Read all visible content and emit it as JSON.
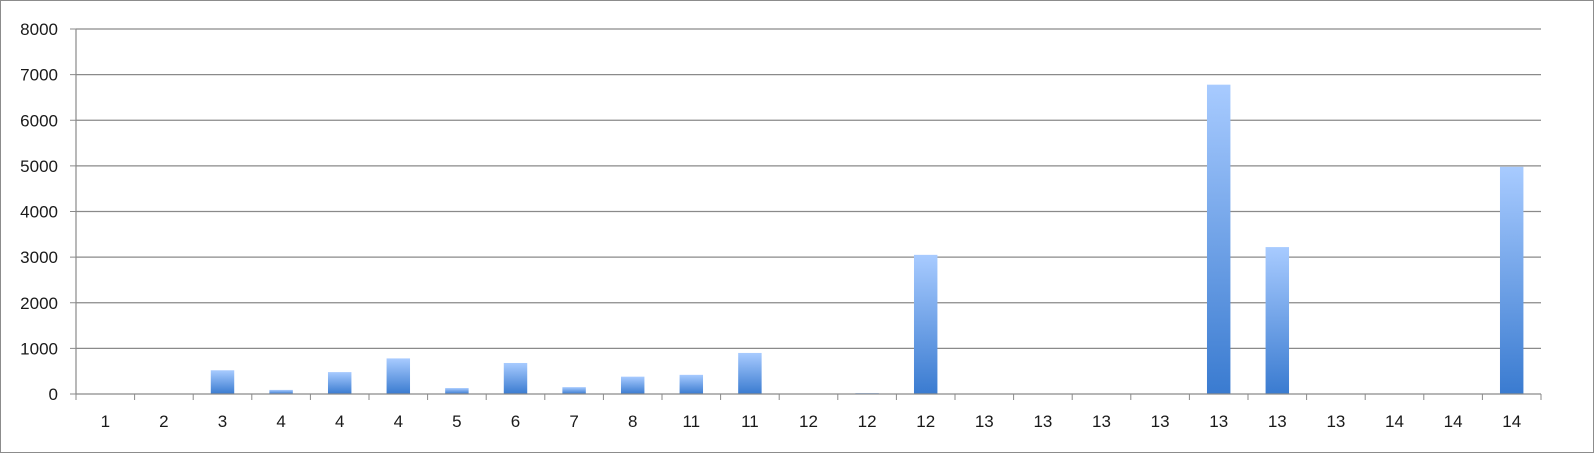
{
  "chart_data": {
    "type": "bar",
    "title": "",
    "xlabel": "",
    "ylabel": "",
    "ylim": [
      0,
      8000
    ],
    "yticks": [
      0,
      1000,
      2000,
      3000,
      4000,
      5000,
      6000,
      7000,
      8000
    ],
    "grid": "horizontal",
    "legend": "none",
    "bar_color_top": "#a8cbff",
    "bar_color_bottom": "#3a7bd0",
    "categories": [
      "1",
      "2",
      "3",
      "4",
      "4",
      "4",
      "5",
      "6",
      "7",
      "8",
      "11",
      "11",
      "12",
      "12",
      "12",
      "13",
      "13",
      "13",
      "13",
      "13",
      "13",
      "13",
      "14",
      "14",
      "14"
    ],
    "values": [
      0,
      0,
      520,
      90,
      480,
      780,
      130,
      680,
      150,
      380,
      420,
      900,
      0,
      20,
      3050,
      0,
      0,
      0,
      0,
      6780,
      3220,
      0,
      0,
      0,
      4980
    ]
  }
}
